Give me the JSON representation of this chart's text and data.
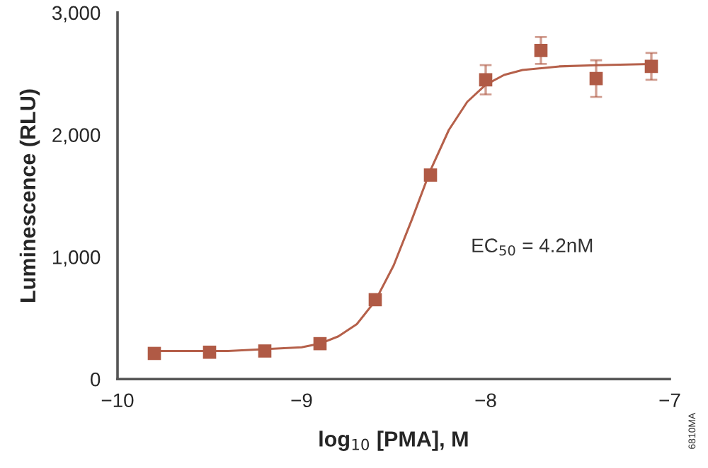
{
  "chart_data": {
    "type": "scatter",
    "xlabel": "log$_{10}$ [PMA], M",
    "ylabel": "Luminescence (RLU)",
    "xlim": [
      -10,
      -7
    ],
    "xticks": [
      {
        "value": -10,
        "label": "−10"
      },
      {
        "value": -9,
        "label": "−9"
      },
      {
        "value": -8,
        "label": "−8"
      },
      {
        "value": -7,
        "label": "−7"
      }
    ],
    "ylim": [
      0,
      3000
    ],
    "yticks": [
      0,
      {
        "value": 1000,
        "label": "1,000"
      },
      {
        "value": 2000,
        "label": "2,000"
      },
      {
        "value": 3000,
        "label": "3,000"
      }
    ],
    "grid": false,
    "legend": false,
    "series": [
      {
        "type": "line",
        "color": "#b5604a",
        "marker": "none",
        "line_style": "solid",
        "x": [
          -9.8,
          -9.4,
          -9.0,
          -8.9,
          -8.8,
          -8.7,
          -8.6,
          -8.5,
          -8.4,
          -8.3,
          -8.2,
          -8.1,
          -8.0,
          -7.9,
          -7.8,
          -7.6,
          -7.4,
          -7.1
        ],
        "values": [
          230,
          230,
          260,
          290,
          350,
          450,
          640,
          930,
          1310,
          1710,
          2040,
          2270,
          2410,
          2490,
          2530,
          2560,
          2570,
          2580
        ]
      },
      {
        "color": "#b05a45",
        "marker": "square",
        "x": [
          -9.8,
          -9.5,
          -9.2,
          -8.9,
          -8.6,
          -8.3,
          -8.0,
          -7.7,
          -7.4,
          -7.1
        ],
        "values": [
          210,
          220,
          230,
          290,
          650,
          1670,
          2450,
          2690,
          2460,
          2560
        ],
        "errors": [
          null,
          null,
          null,
          null,
          null,
          40,
          120,
          110,
          150,
          110
        ]
      }
    ],
    "annotations": [
      "EC$_{50}$ = 4.2nM",
      "6810MA"
    ]
  }
}
